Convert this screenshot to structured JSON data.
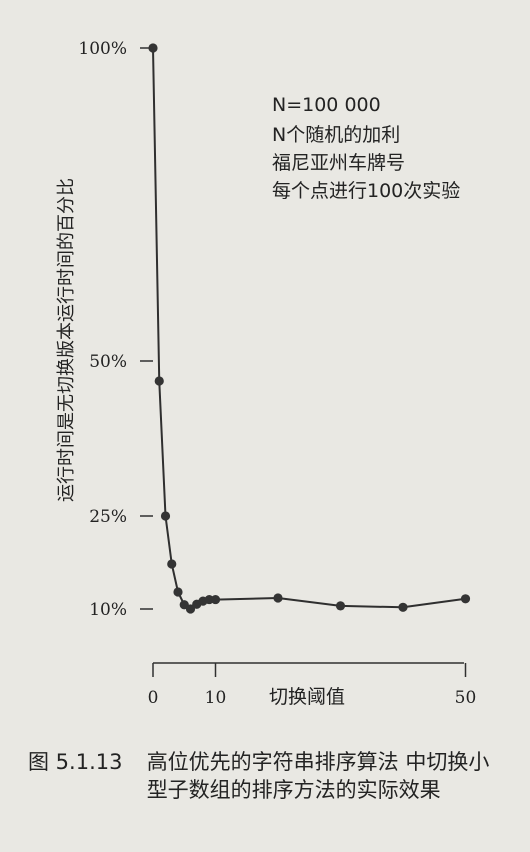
{
  "chart_data": {
    "type": "line",
    "ylabel": "运行时间是无切换版本运行时间的百分比",
    "xlabel": "切换阈值",
    "x_ticks": [
      "0",
      "10",
      "50"
    ],
    "y_ticks": [
      "100%",
      "50%",
      "25%",
      "10%"
    ],
    "annotation": [
      "N=100 000",
      "N个随机的加利",
      "福尼亚州车牌号",
      "每个点进行100次实验"
    ],
    "series": [
      {
        "x": [
          0,
          1,
          2,
          3,
          4,
          5,
          6,
          7,
          8,
          9,
          10,
          20,
          30,
          40,
          50
        ],
        "y": [
          100,
          46,
          24,
          15,
          12,
          10.5,
          10,
          9.7,
          9.5,
          9.4,
          9.4,
          9.3,
          9.8,
          10.2,
          11.2
        ]
      }
    ],
    "grid": false,
    "legend": "none"
  },
  "caption": {
    "number": "图 5.1.13",
    "text": "高位优先的字符串排序算法 中切换小型子数组的排序方法的实际效果"
  },
  "colors": {
    "line": "#2f2f2f",
    "marker": "#343434",
    "background": "#e9e8e3"
  }
}
